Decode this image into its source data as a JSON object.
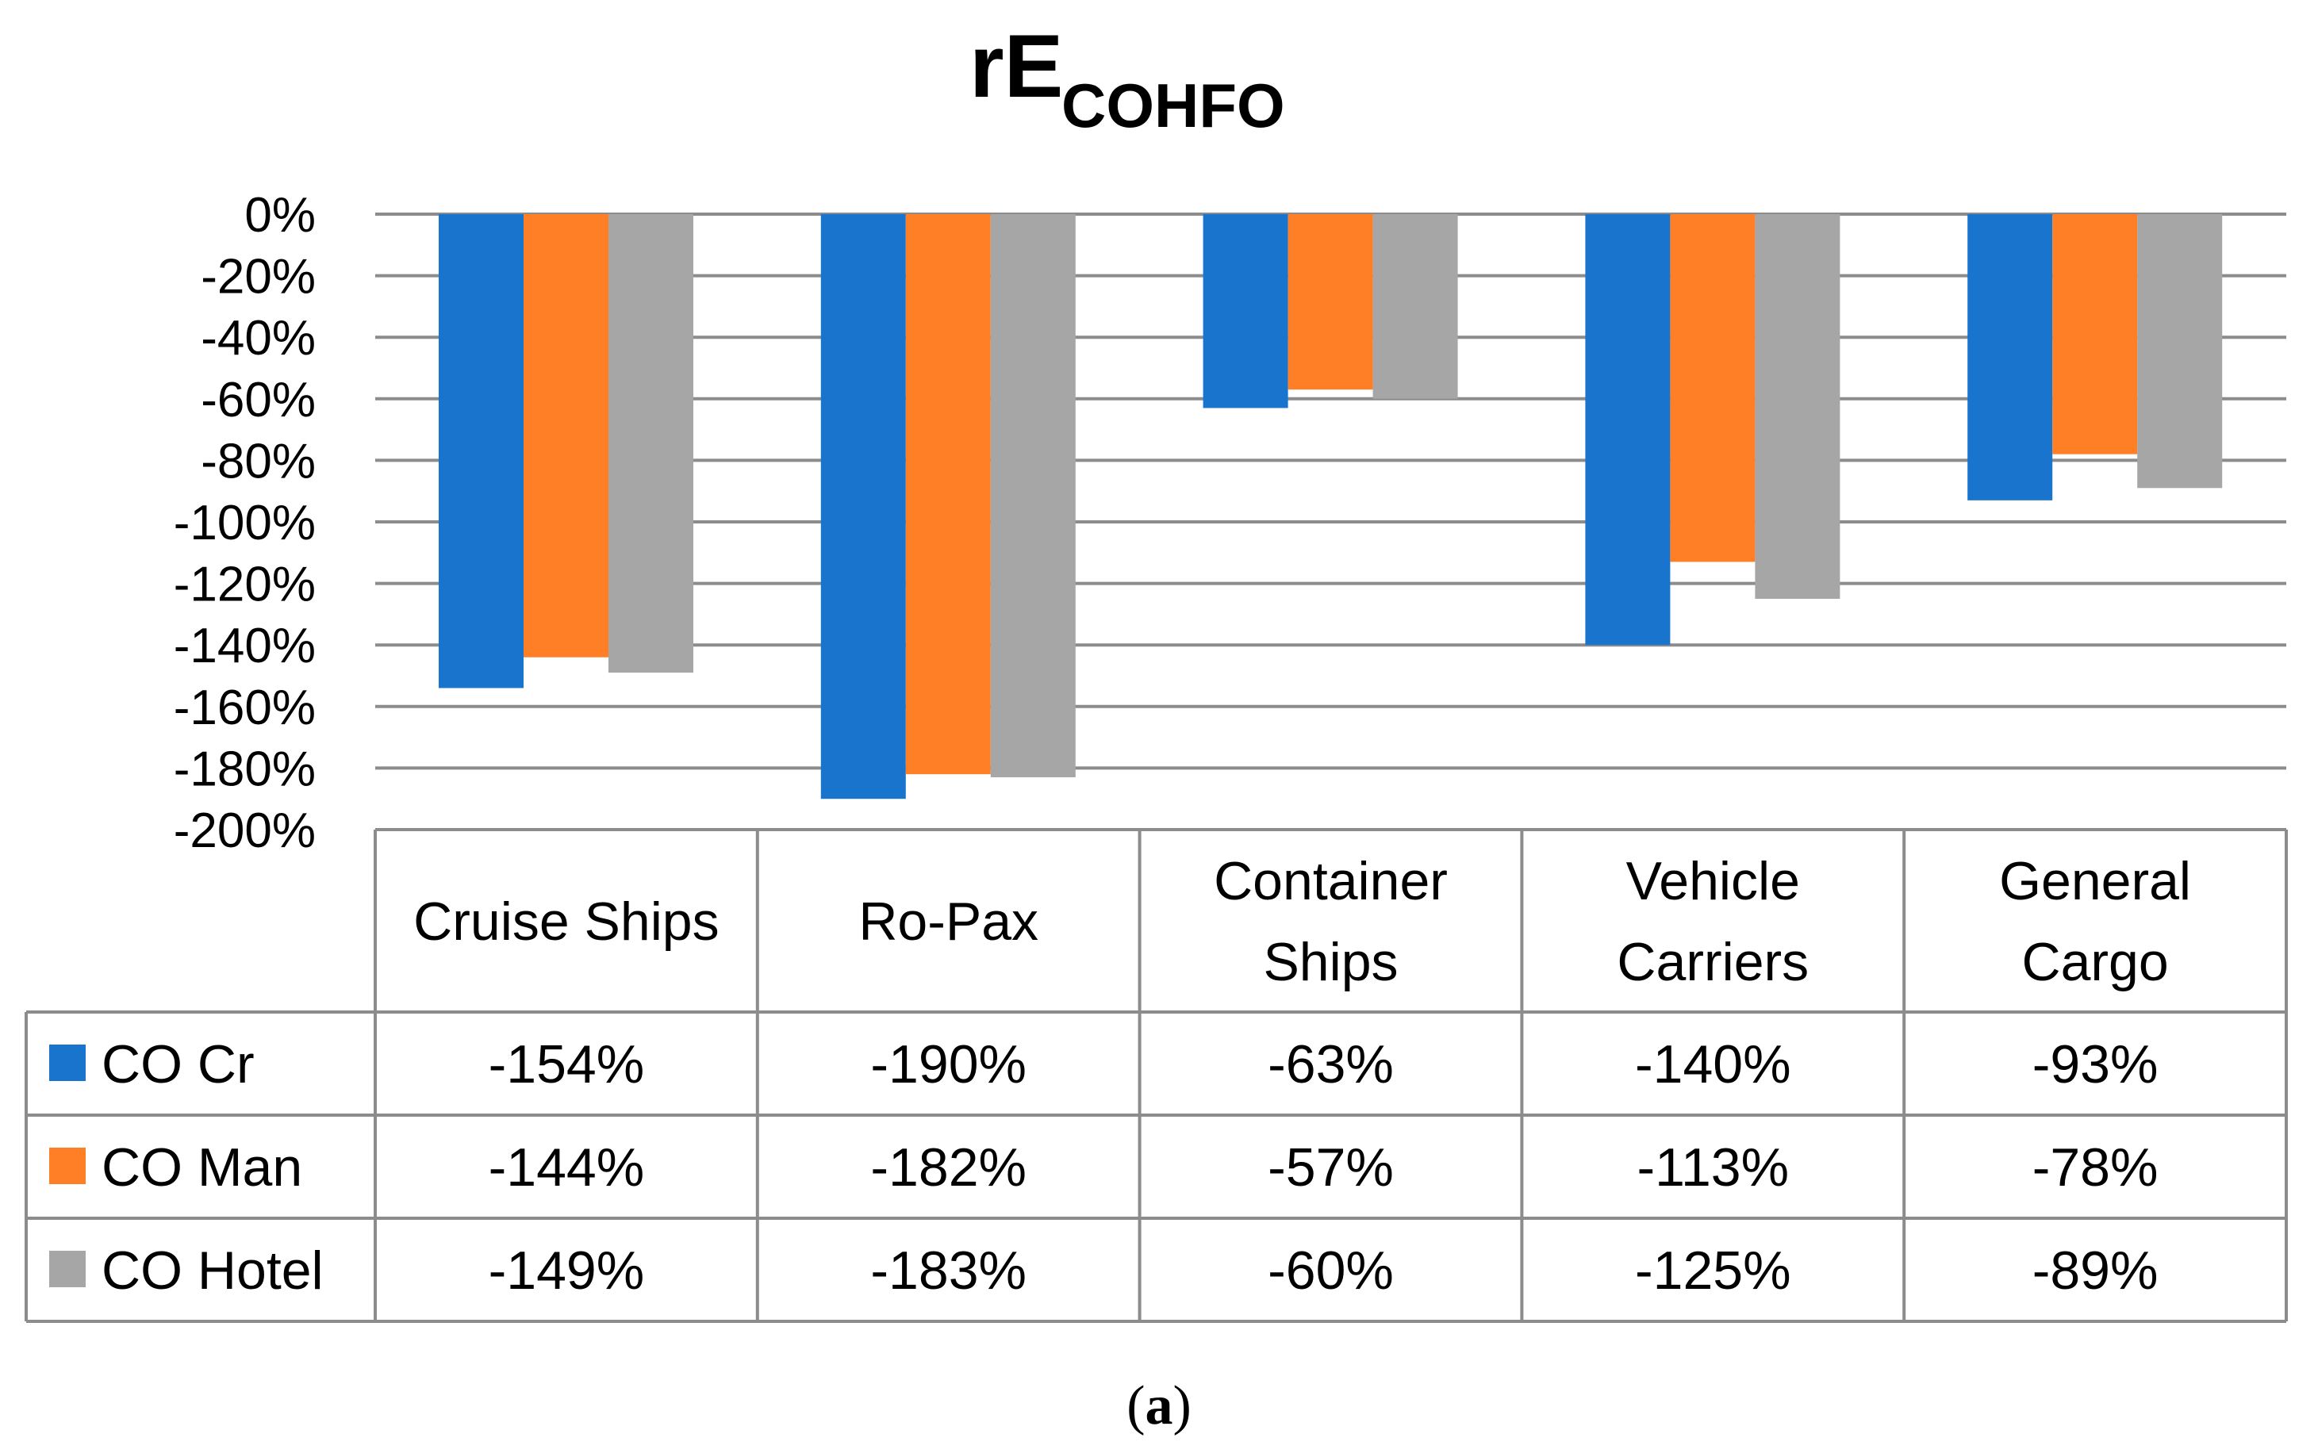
{
  "caption": {
    "open": "(",
    "label": "a",
    "close": ")"
  },
  "chart_data": {
    "type": "bar",
    "title": "rE",
    "title_subscript": "COHFO",
    "categories": [
      [
        "Cruise Ships"
      ],
      [
        "Ro-Pax"
      ],
      [
        "Container",
        "Ships"
      ],
      [
        "Vehicle",
        "Carriers"
      ],
      [
        "General",
        "Cargo"
      ]
    ],
    "series": [
      {
        "name": "CO  Cr",
        "color": "#1874CD",
        "values": [
          -154,
          -190,
          -63,
          -140,
          -93
        ],
        "labels": [
          "-154%",
          "-190%",
          "-63%",
          "-140%",
          "-93%"
        ]
      },
      {
        "name": "CO  Man",
        "color": "#FF7F27",
        "values": [
          -144,
          -182,
          -57,
          -113,
          -78
        ],
        "labels": [
          "-144%",
          "-182%",
          "-57%",
          "-113%",
          "-78%"
        ]
      },
      {
        "name": "CO  Hotel",
        "color": "#A6A6A6",
        "values": [
          -149,
          -183,
          -60,
          -125,
          -89
        ],
        "labels": [
          "-149%",
          "-183%",
          "-60%",
          "-125%",
          "-89%"
        ]
      }
    ],
    "ylim": [
      -200,
      0
    ],
    "yticks": [
      0,
      -20,
      -40,
      -60,
      -80,
      -100,
      -120,
      -140,
      -160,
      -180,
      -200
    ],
    "ytick_labels": [
      "0%",
      "-20%",
      "-40%",
      "-60%",
      "-80%",
      "-100%",
      "-120%",
      "-140%",
      "-160%",
      "-180%",
      "-200%"
    ],
    "grid": true,
    "legend": "data-table"
  }
}
